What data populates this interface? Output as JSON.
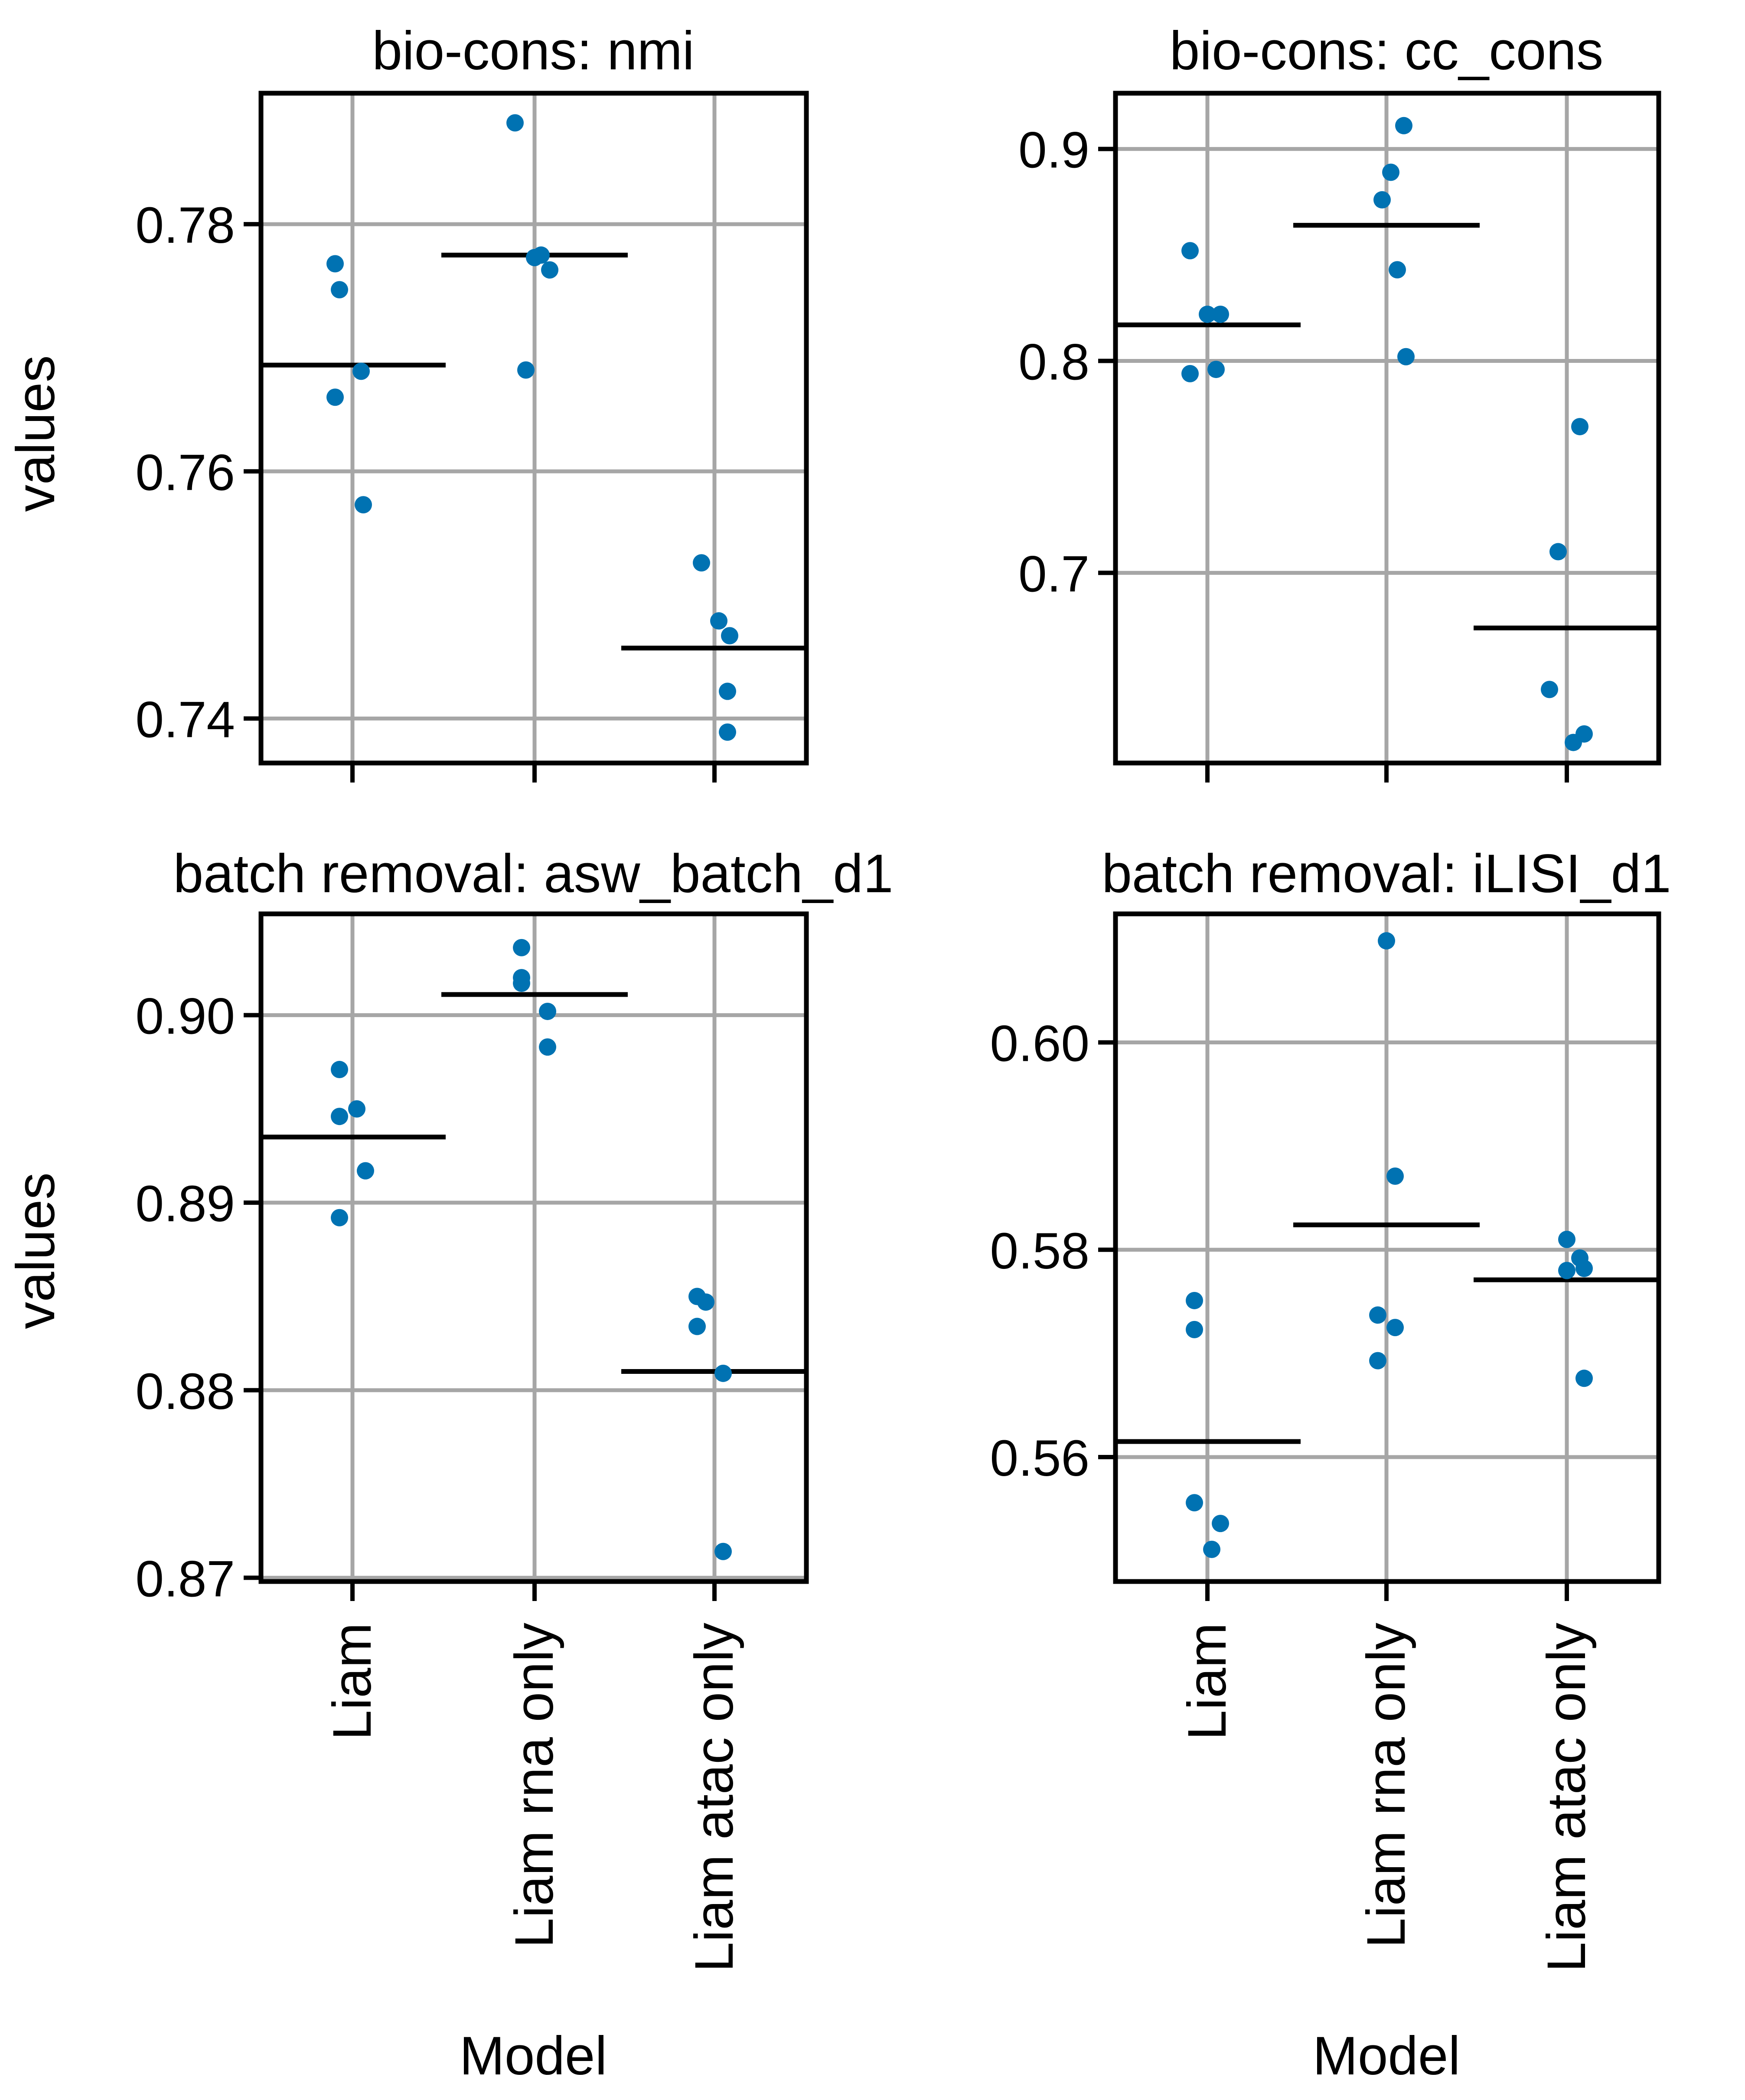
{
  "figure": {
    "shared_ylabel": "values",
    "shared_xlabel": "Model",
    "categories": [
      "Liam",
      "Liam rna only",
      "Liam atac only"
    ]
  },
  "colors": {
    "point": "#0072b2",
    "mean_line": "#000000",
    "grid": "#a6a6a6",
    "axes": "#000000"
  },
  "chart_data": [
    {
      "type": "scatter",
      "title": "bio-cons: nmi",
      "xlabel": "",
      "ylabel": "values",
      "grid": true,
      "categories": [
        "Liam",
        "Liam rna only",
        "Liam atac only"
      ],
      "ylim": [
        0.7364,
        0.7906
      ],
      "yticks": [
        0.74,
        0.76,
        0.78
      ],
      "ytick_labels": [
        "0.74",
        "0.76",
        "0.78"
      ],
      "series": [
        {
          "category": "Liam",
          "points": [
            0.7768,
            0.7747,
            0.7681,
            0.766,
            0.7573
          ],
          "mean": 0.7686
        },
        {
          "category": "Liam rna only",
          "points": [
            0.7882,
            0.7775,
            0.7773,
            0.7763,
            0.7682
          ],
          "mean": 0.7775
        },
        {
          "category": "Liam atac only",
          "points": [
            0.7526,
            0.7479,
            0.7467,
            0.7422,
            0.7389
          ],
          "mean": 0.7457
        }
      ]
    },
    {
      "type": "scatter",
      "title": "bio-cons: cc_cons",
      "xlabel": "",
      "ylabel": "",
      "grid": true,
      "categories": [
        "Liam",
        "Liam rna only",
        "Liam atac only"
      ],
      "ylim": [
        0.6103,
        0.9263
      ],
      "yticks": [
        0.7,
        0.8,
        0.9
      ],
      "ytick_labels": [
        "0.7",
        "0.8",
        "0.9"
      ],
      "series": [
        {
          "category": "Liam",
          "points": [
            0.852,
            0.822,
            0.822,
            0.796,
            0.794
          ],
          "mean": 0.817
        },
        {
          "category": "Liam rna only",
          "points": [
            0.911,
            0.889,
            0.876,
            0.843,
            0.802
          ],
          "mean": 0.864
        },
        {
          "category": "Liam atac only",
          "points": [
            0.769,
            0.71,
            0.645,
            0.624,
            0.62
          ],
          "mean": 0.674
        }
      ]
    },
    {
      "type": "scatter",
      "title": "batch removal: asw_batch_d1",
      "xlabel": "Model",
      "ylabel": "values",
      "grid": true,
      "categories": [
        "Liam",
        "Liam rna only",
        "Liam atac only"
      ],
      "ylim": [
        0.8698,
        0.9054
      ],
      "yticks": [
        0.87,
        0.88,
        0.89,
        0.9
      ],
      "ytick_labels": [
        "0.87",
        "0.88",
        "0.89",
        "0.90"
      ],
      "series": [
        {
          "category": "Liam",
          "points": [
            0.8971,
            0.895,
            0.8946,
            0.8917,
            0.8892
          ],
          "mean": 0.8935
        },
        {
          "category": "Liam rna only",
          "points": [
            0.9036,
            0.902,
            0.9017,
            0.9002,
            0.8983
          ],
          "mean": 0.9011
        },
        {
          "category": "Liam atac only",
          "points": [
            0.885,
            0.8847,
            0.8834,
            0.8809,
            0.8714
          ],
          "mean": 0.881
        }
      ]
    },
    {
      "type": "scatter",
      "title": "batch removal: iLISI_d1",
      "xlabel": "Model",
      "ylabel": "",
      "grid": true,
      "categories": [
        "Liam",
        "Liam rna only",
        "Liam atac only"
      ],
      "ylim": [
        0.548,
        0.6124
      ],
      "yticks": [
        0.56,
        0.58,
        0.6
      ],
      "ytick_labels": [
        "0.56",
        "0.58",
        "0.60"
      ],
      "series": [
        {
          "category": "Liam",
          "points": [
            0.5751,
            0.5723,
            0.5556,
            0.5536,
            0.5511
          ],
          "mean": 0.5615
        },
        {
          "category": "Liam rna only",
          "points": [
            0.6098,
            0.5871,
            0.5737,
            0.5725,
            0.5693
          ],
          "mean": 0.5824
        },
        {
          "category": "Liam atac only",
          "points": [
            0.581,
            0.5792,
            0.5782,
            0.578,
            0.5676
          ],
          "mean": 0.5771
        }
      ]
    }
  ]
}
